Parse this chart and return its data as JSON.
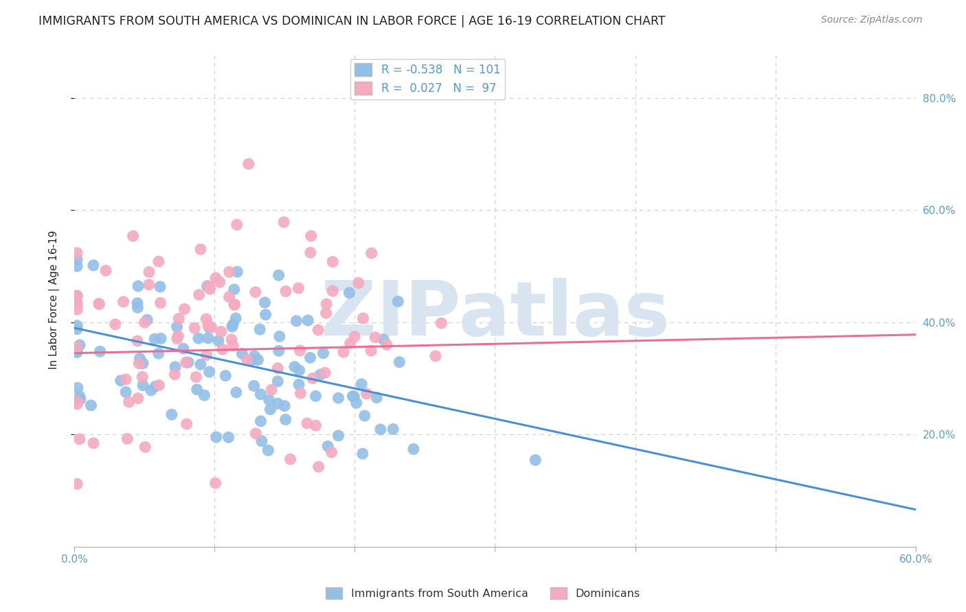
{
  "title": "IMMIGRANTS FROM SOUTH AMERICA VS DOMINICAN IN LABOR FORCE | AGE 16-19 CORRELATION CHART",
  "source": "Source: ZipAtlas.com",
  "ylabel": "In Labor Force | Age 16-19",
  "xlim": [
    0.0,
    0.6
  ],
  "ylim": [
    0.0,
    0.88
  ],
  "xticks": [
    0.0,
    0.1,
    0.2,
    0.3,
    0.4,
    0.5,
    0.6
  ],
  "yticks": [
    0.2,
    0.4,
    0.6,
    0.8
  ],
  "blue_color": "#92bfe8",
  "pink_color": "#f5aabf",
  "blue_line_color": "#4a8fd4",
  "pink_line_color": "#e86e96",
  "blue_R": -0.538,
  "blue_N": 101,
  "pink_R": 0.027,
  "pink_N": 97,
  "blue_intercept": 0.39,
  "blue_slope": -0.54,
  "pink_intercept": 0.345,
  "pink_slope": 0.055,
  "title_color": "#222222",
  "axis_tick_color": "#5a9bd5",
  "background_color": "#ffffff",
  "grid_color": "#cccccc",
  "watermark_color": "#d8e4f0",
  "seed_blue": 42,
  "seed_pink": 77
}
